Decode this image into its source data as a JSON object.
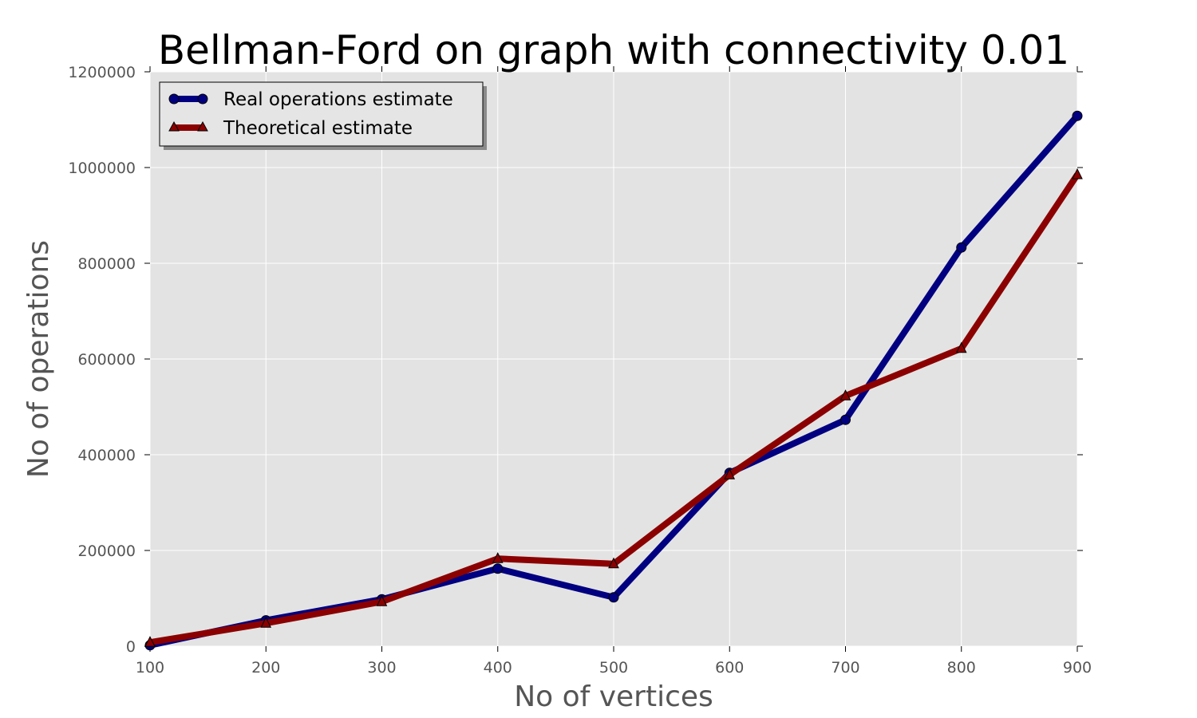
{
  "chart_data": {
    "type": "line",
    "title": "Bellman-Ford on graph with connectivity 0.01",
    "xlabel": "No of vertices",
    "ylabel": "No of operations",
    "xlim": [
      100,
      900
    ],
    "ylim": [
      0,
      1200000
    ],
    "x": [
      100,
      200,
      300,
      400,
      500,
      600,
      700,
      800,
      900
    ],
    "xticks": [
      100,
      200,
      300,
      400,
      500,
      600,
      700,
      800,
      900
    ],
    "yticks": [
      0,
      200000,
      400000,
      600000,
      800000,
      1000000,
      1200000
    ],
    "grid": true,
    "legend_position": "top-left",
    "background_color": "#e3e3e3",
    "series": [
      {
        "name": "Real operations estimate",
        "color": "#000080",
        "marker": "circle",
        "values": [
          2000,
          54000,
          98000,
          162000,
          102000,
          362000,
          473000,
          833000,
          1108000
        ]
      },
      {
        "name": "Theoretical estimate",
        "color": "#8b0000",
        "marker": "triangle",
        "values": [
          8000,
          48000,
          93000,
          183000,
          172000,
          358000,
          523000,
          622000,
          985000
        ]
      }
    ]
  }
}
